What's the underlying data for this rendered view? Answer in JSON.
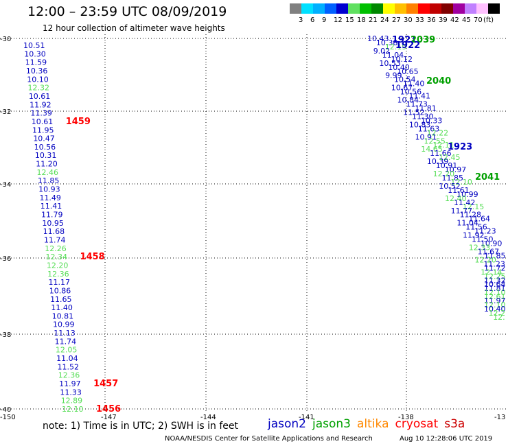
{
  "title": "12:00 – 23:59 UTC 08/09/2019",
  "subtitle": "12 hour collection of altimeter wave heights",
  "colorbar": {
    "unit": "(ft)",
    "swatches": [
      {
        "color": "#808080",
        "label": ""
      },
      {
        "color": "#00e0ff",
        "label": "3"
      },
      {
        "color": "#00b0ff",
        "label": "6"
      },
      {
        "color": "#0060ff",
        "label": "9"
      },
      {
        "color": "#0000d0",
        "label": "12"
      },
      {
        "color": "#60e060",
        "label": "15"
      },
      {
        "color": "#00c000",
        "label": "18"
      },
      {
        "color": "#008800",
        "label": "21"
      },
      {
        "color": "#ffff00",
        "label": "24"
      },
      {
        "color": "#ffc000",
        "label": "27"
      },
      {
        "color": "#ff8000",
        "label": "30"
      },
      {
        "color": "#ff0000",
        "label": "33"
      },
      {
        "color": "#c00000",
        "label": "36"
      },
      {
        "color": "#800000",
        "label": "39"
      },
      {
        "color": "#a000a0",
        "label": "42"
      },
      {
        "color": "#c080ff",
        "label": "45"
      },
      {
        "color": "#ffc0ff",
        "label": "70"
      },
      {
        "color": "#000000",
        "label": ""
      }
    ]
  },
  "axes": {
    "lon_labels": [
      "-150",
      "-147",
      "-144",
      "-141",
      "-138",
      "-13"
    ],
    "lat_labels": [
      "-30",
      "-32",
      "-34",
      "-36",
      "-38",
      "-40"
    ]
  },
  "colors": {
    "jason2": "#0000c0",
    "jason3": "#00a000",
    "s3a_light": "#55dd55",
    "cryosat": "#ff0000",
    "altika": "#ff8800",
    "s3a": "#cc0000"
  },
  "left_track": {
    "values": [
      {
        "v": "10.51",
        "c": "jason2"
      },
      {
        "v": "10.30",
        "c": "jason2"
      },
      {
        "v": "11.59",
        "c": "jason2"
      },
      {
        "v": "10.36",
        "c": "jason2"
      },
      {
        "v": "10.10",
        "c": "jason2"
      },
      {
        "v": "12.32",
        "c": "s3a_light"
      },
      {
        "v": "10.61",
        "c": "jason2"
      },
      {
        "v": "11.92",
        "c": "jason2"
      },
      {
        "v": "11.39",
        "c": "jason2"
      },
      {
        "v": "10.61",
        "c": "jason2"
      },
      {
        "v": "11.95",
        "c": "jason2"
      },
      {
        "v": "10.47",
        "c": "jason2"
      },
      {
        "v": "10.56",
        "c": "jason2"
      },
      {
        "v": "10.31",
        "c": "jason2"
      },
      {
        "v": "11.20",
        "c": "jason2"
      },
      {
        "v": "12.46",
        "c": "s3a_light"
      },
      {
        "v": "11.85",
        "c": "jason2"
      },
      {
        "v": "10.93",
        "c": "jason2"
      },
      {
        "v": "11.49",
        "c": "jason2"
      },
      {
        "v": "11.41",
        "c": "jason2"
      },
      {
        "v": "11.79",
        "c": "jason2"
      },
      {
        "v": "10.95",
        "c": "jason2"
      },
      {
        "v": "11.68",
        "c": "jason2"
      },
      {
        "v": "11.74",
        "c": "jason2"
      },
      {
        "v": "12.26",
        "c": "s3a_light"
      },
      {
        "v": "12.34",
        "c": "s3a_light"
      },
      {
        "v": "12.20",
        "c": "s3a_light"
      },
      {
        "v": "12.36",
        "c": "s3a_light"
      },
      {
        "v": "11.17",
        "c": "jason2"
      },
      {
        "v": "10.86",
        "c": "jason2"
      },
      {
        "v": "11.65",
        "c": "jason2"
      },
      {
        "v": "11.40",
        "c": "jason2"
      },
      {
        "v": "10.81",
        "c": "jason2"
      },
      {
        "v": "10.99",
        "c": "jason2"
      },
      {
        "v": "11.13",
        "c": "jason2"
      },
      {
        "v": "11.74",
        "c": "jason2"
      },
      {
        "v": "12.05",
        "c": "s3a_light"
      },
      {
        "v": "11.04",
        "c": "jason2"
      },
      {
        "v": "11.52",
        "c": "jason2"
      },
      {
        "v": "12.36",
        "c": "s3a_light"
      },
      {
        "v": "11.97",
        "c": "jason2"
      },
      {
        "v": "11.33",
        "c": "jason2"
      },
      {
        "v": "12.89",
        "c": "s3a_light"
      },
      {
        "v": "12.10",
        "c": "s3a_light"
      }
    ],
    "times": [
      {
        "t": "1459",
        "row": 9
      },
      {
        "t": "1458",
        "row": 25
      },
      {
        "t": "1457",
        "row": 40
      },
      {
        "t": "1456",
        "row": 43
      }
    ]
  },
  "right_track": {
    "values": [
      {
        "v": "10.43",
        "c": "jason2"
      },
      {
        "v": "10.38",
        "c": "jason2"
      },
      {
        "v": "12.19",
        "c": "s3a_light"
      },
      {
        "v": "9.02",
        "c": "jason2"
      },
      {
        "v": "11.04",
        "c": "jason2"
      },
      {
        "v": "10.12",
        "c": "jason2"
      },
      {
        "v": "10.53",
        "c": "jason2"
      },
      {
        "v": "10.40",
        "c": "jason2"
      },
      {
        "v": "10.65",
        "c": "jason2"
      },
      {
        "v": "9.99",
        "c": "jason2"
      },
      {
        "v": "10.54",
        "c": "jason2"
      },
      {
        "v": "11.40",
        "c": "jason2"
      },
      {
        "v": "10.67",
        "c": "jason2"
      },
      {
        "v": "10.56",
        "c": "jason2"
      },
      {
        "v": "11.41",
        "c": "jason2"
      },
      {
        "v": "10.84",
        "c": "jason2"
      },
      {
        "v": "11.73",
        "c": "jason2"
      },
      {
        "v": "11.81",
        "c": "jason2"
      },
      {
        "v": "11.52",
        "c": "jason2"
      },
      {
        "v": "11.30",
        "c": "jason2"
      },
      {
        "v": "10.33",
        "c": "jason2"
      },
      {
        "v": "10.83",
        "c": "jason2"
      },
      {
        "v": "11.63",
        "c": "jason2"
      },
      {
        "v": "12.22",
        "c": "s3a_light"
      },
      {
        "v": "10.91",
        "c": "jason2"
      },
      {
        "v": "12.55",
        "c": "s3a_light"
      },
      {
        "v": "12.11",
        "c": "s3a_light"
      },
      {
        "v": "14.65",
        "c": "s3a_light"
      },
      {
        "v": "11.66",
        "c": "jason2"
      },
      {
        "v": "12.45",
        "c": "s3a_light"
      },
      {
        "v": "10.39",
        "c": "jason2"
      },
      {
        "v": "10.91",
        "c": "jason2"
      },
      {
        "v": "10.97",
        "c": "jason2"
      },
      {
        "v": "12.20",
        "c": "s3a_light"
      },
      {
        "v": "11.85",
        "c": "jason2"
      },
      {
        "v": "12.10",
        "c": "s3a_light"
      },
      {
        "v": "10.52",
        "c": "jason2"
      },
      {
        "v": "11.61",
        "c": "jason2"
      },
      {
        "v": "10.99",
        "c": "jason2"
      },
      {
        "v": "12.40",
        "c": "s3a_light"
      },
      {
        "v": "11.42",
        "c": "jason2"
      },
      {
        "v": "12.15",
        "c": "s3a_light"
      },
      {
        "v": "11.77",
        "c": "jason2"
      },
      {
        "v": "11.28",
        "c": "jason2"
      },
      {
        "v": "11.64",
        "c": "jason2"
      },
      {
        "v": "11.04",
        "c": "jason2"
      },
      {
        "v": "11.56",
        "c": "jason2"
      },
      {
        "v": "11.23",
        "c": "jason2"
      },
      {
        "v": "11.92",
        "c": "jason2"
      },
      {
        "v": "11.50",
        "c": "jason2"
      },
      {
        "v": "10.90",
        "c": "jason2"
      },
      {
        "v": "12.33",
        "c": "s3a_light"
      },
      {
        "v": "11.67",
        "c": "jason2"
      },
      {
        "v": "11.85",
        "c": "jason2"
      },
      {
        "v": "12.20",
        "c": "s3a_light"
      },
      {
        "v": "11.23",
        "c": "jason2"
      },
      {
        "v": "11.72",
        "c": "jason2"
      },
      {
        "v": "12.14",
        "c": "s3a_light"
      },
      {
        "v": "12.25",
        "c": "s3a_light"
      },
      {
        "v": "11.32",
        "c": "jason2"
      },
      {
        "v": "10.64",
        "c": "jason2"
      },
      {
        "v": "11.81",
        "c": "jason2"
      },
      {
        "v": "12.10",
        "c": "s3a_light"
      },
      {
        "v": "12.61",
        "c": "s3a_light"
      },
      {
        "v": "11.97",
        "c": "jason2"
      },
      {
        "v": "12.10",
        "c": "s3a_light"
      },
      {
        "v": "10.40",
        "c": "jason2"
      },
      {
        "v": "12.2",
        "c": "s3a_light"
      },
      {
        "v": "12.",
        "c": "s3a_light"
      }
    ],
    "times": [
      {
        "t": "1921",
        "c": "jason2"
      },
      {
        "t": "2039",
        "c": "jason3"
      },
      {
        "t": "1922",
        "c": "jason2"
      },
      {
        "t": "2040",
        "c": "jason3"
      },
      {
        "t": "1923",
        "c": "jason2"
      },
      {
        "t": "2041",
        "c": "jason3"
      }
    ]
  },
  "note": "note:  1) Time is in UTC;  2) SWH is in feet",
  "legend": [
    {
      "label": "jason2",
      "c": "jason2"
    },
    {
      "label": "jason3",
      "c": "jason3"
    },
    {
      "label": "altika",
      "c": "altika"
    },
    {
      "label": "cryosat",
      "c": "cryosat"
    },
    {
      "label": "s3a",
      "c": "s3a"
    }
  ],
  "footer_left": "NOAA/NESDIS Center for Satellite Applications and Research",
  "footer_right": "Aug 10 12:28:06 UTC 2019"
}
